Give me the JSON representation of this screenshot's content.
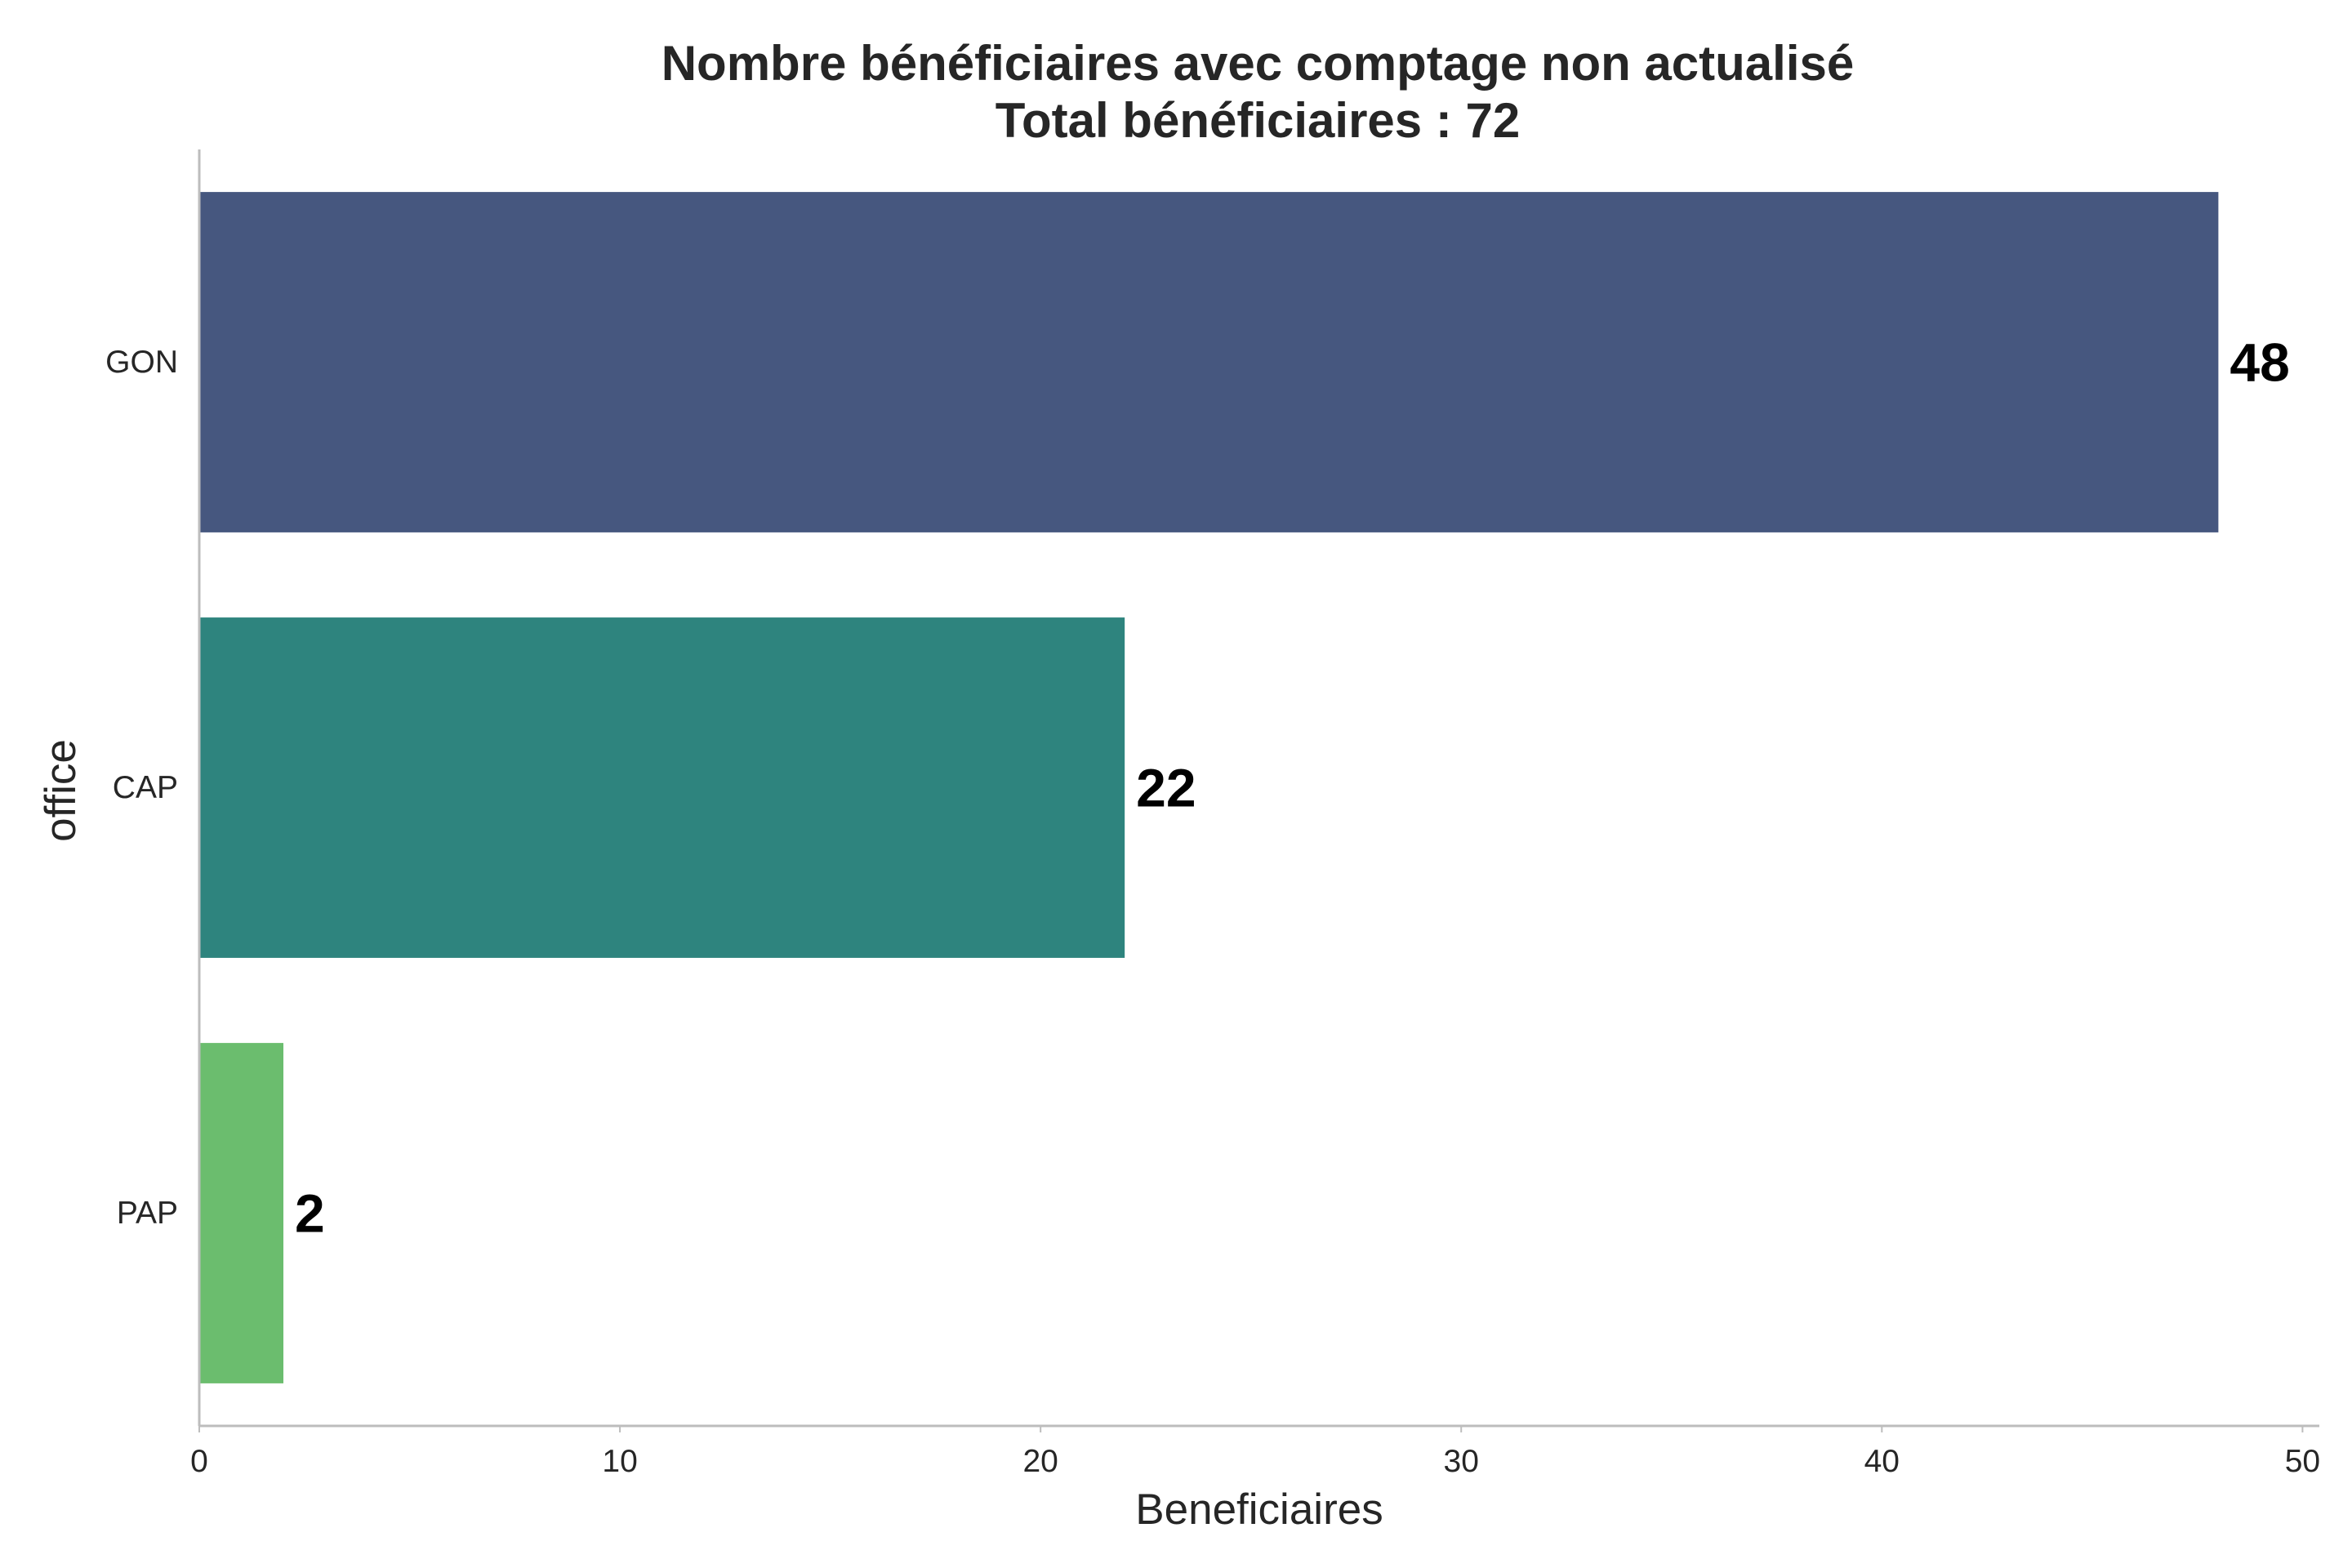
{
  "chart_data": {
    "type": "bar",
    "orientation": "horizontal",
    "title": "Nombre bénéficiaires avec comptage non actualisé",
    "subtitle": "Total bénéficiaires : 72",
    "xlabel": "Beneficiaires",
    "ylabel": "office",
    "categories": [
      "GON",
      "CAP",
      "PAP"
    ],
    "values": [
      48,
      22,
      2
    ],
    "data_labels": [
      "48",
      "22",
      "2"
    ],
    "colors": [
      "#46577f",
      "#2e847e",
      "#6bbd6e"
    ],
    "xlim": [
      0,
      50.4
    ],
    "xticks": [
      0,
      10,
      20,
      30,
      40,
      50
    ],
    "xtick_labels": [
      "0",
      "10",
      "20",
      "30",
      "40",
      "50"
    ],
    "grid": false,
    "legend": "none"
  }
}
